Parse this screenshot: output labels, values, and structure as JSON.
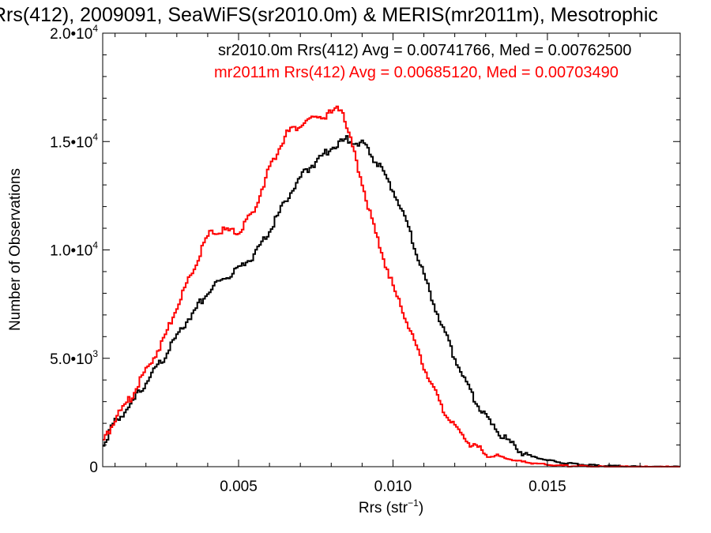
{
  "chart_data": {
    "type": "line",
    "title": "Rrs(412), 2009091, SeaWiFS(sr2010.0m) & MERIS(mr2011m), Mesotrophic",
    "xlabel": "Rrs (str",
    "xlabel_sup": "−1",
    "xlabel_end": ")",
    "ylabel": "Number of Observations",
    "xlim": [
      0.0006,
      0.0193
    ],
    "ylim": [
      0,
      20000
    ],
    "x_ticks": [
      {
        "value": 0.005,
        "label": "0.005"
      },
      {
        "value": 0.01,
        "label": "0.010"
      },
      {
        "value": 0.015,
        "label": "0.015"
      }
    ],
    "y_ticks": [
      {
        "value": 0,
        "mant": "0",
        "exp": ""
      },
      {
        "value": 5000,
        "mant": "5.0•10",
        "exp": "3"
      },
      {
        "value": 10000,
        "mant": "1.0•10",
        "exp": "4"
      },
      {
        "value": 15000,
        "mant": "1.5•10",
        "exp": "4"
      },
      {
        "value": 20000,
        "mant": "2.0•10",
        "exp": "4"
      }
    ],
    "legend": [
      {
        "text": "sr2010.0m Rrs(412) Avg = 0.00741766, Med = 0.00762500",
        "color": "#000000"
      },
      {
        "text": "mr2011m Rrs(412) Avg = 0.00685120, Med = 0.00703490",
        "color": "#ff0000"
      }
    ],
    "series": [
      {
        "color": "#000000",
        "x": [
          0.0006,
          0.001,
          0.0015,
          0.002,
          0.0025,
          0.003,
          0.0035,
          0.004,
          0.0045,
          0.005,
          0.0055,
          0.006,
          0.0065,
          0.007,
          0.0075,
          0.008,
          0.0085,
          0.009,
          0.0095,
          0.01,
          0.0105,
          0.011,
          0.0115,
          0.012,
          0.0125,
          0.013,
          0.0135,
          0.014,
          0.0145,
          0.015,
          0.0155,
          0.016,
          0.0165,
          0.017,
          0.0175,
          0.018,
          0.0185,
          0.0193
        ],
        "y": [
          1200,
          2200,
          3000,
          4000,
          5000,
          6200,
          7200,
          8200,
          8800,
          9200,
          9900,
          11000,
          12400,
          13500,
          14200,
          14800,
          15200,
          15000,
          14000,
          12800,
          11000,
          8800,
          6800,
          5000,
          3500,
          2300,
          1500,
          900,
          500,
          300,
          200,
          120,
          80,
          50,
          30,
          20,
          10,
          5
        ]
      },
      {
        "color": "#ff0000",
        "x": [
          0.0006,
          0.001,
          0.0015,
          0.002,
          0.0025,
          0.003,
          0.0035,
          0.004,
          0.0045,
          0.005,
          0.0055,
          0.006,
          0.0065,
          0.007,
          0.0075,
          0.008,
          0.0083,
          0.0085,
          0.009,
          0.0095,
          0.01,
          0.0105,
          0.011,
          0.0115,
          0.012,
          0.0125,
          0.013,
          0.0135,
          0.014,
          0.0145,
          0.015,
          0.0155,
          0.016,
          0.0165,
          0.017,
          0.0175,
          0.018,
          0.0185,
          0.0193
        ],
        "y": [
          1200,
          2400,
          3300,
          4600,
          5800,
          7500,
          9200,
          10800,
          11000,
          10900,
          12000,
          14000,
          15400,
          15900,
          16200,
          16400,
          16700,
          15700,
          13000,
          10400,
          8300,
          6500,
          4600,
          3000,
          1800,
          1100,
          700,
          450,
          280,
          180,
          100,
          60,
          40,
          25,
          15,
          10,
          5,
          3,
          2
        ]
      }
    ]
  }
}
